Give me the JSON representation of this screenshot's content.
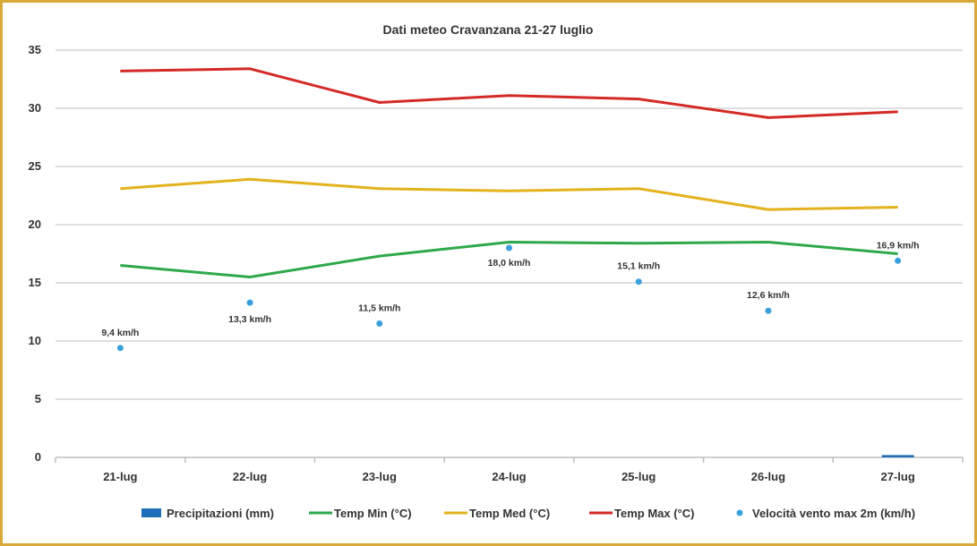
{
  "chart_data": {
    "type": "line",
    "title": "Dati meteo Cravanzana 21-27 luglio",
    "categories": [
      "21-lug",
      "22-lug",
      "23-lug",
      "24-lug",
      "25-lug",
      "26-lug",
      "27-lug"
    ],
    "y_ticks": [
      "0",
      "5",
      "10",
      "15",
      "20",
      "25",
      "30",
      "35"
    ],
    "ylim": [
      0,
      35
    ],
    "grid": true,
    "legend_position": "bottom",
    "series": [
      {
        "name": "Precipitazioni (mm)",
        "kind": "bar",
        "color": "#1f6fb8",
        "values": [
          0,
          0,
          0,
          0,
          0,
          0,
          0.2
        ]
      },
      {
        "name": "Temp Min (°C)",
        "kind": "line",
        "color": "#2ea84a",
        "values": [
          16.5,
          15.5,
          17.3,
          18.5,
          18.4,
          18.5,
          17.5
        ]
      },
      {
        "name": "Temp Med (°C)",
        "kind": "line",
        "color": "#e3b21c",
        "values": [
          23.1,
          23.9,
          23.1,
          22.9,
          23.1,
          21.3,
          21.5
        ]
      },
      {
        "name": "Temp Max (°C)",
        "kind": "line",
        "color": "#d42a27",
        "values": [
          33.2,
          33.4,
          30.5,
          31.1,
          30.8,
          29.2,
          29.7
        ]
      },
      {
        "name": "Velocità vento max 2m (km/h)",
        "kind": "scatter",
        "color": "#3aa0dc",
        "values": [
          9.4,
          13.3,
          11.5,
          18.0,
          15.1,
          12.6,
          16.9
        ],
        "labels": [
          "9,4 km/h",
          "13,3 km/h",
          "11,5 km/h",
          "18,0 km/h",
          "15,1 km/h",
          "12,6 km/h",
          "16,9 km/h"
        ]
      }
    ]
  }
}
